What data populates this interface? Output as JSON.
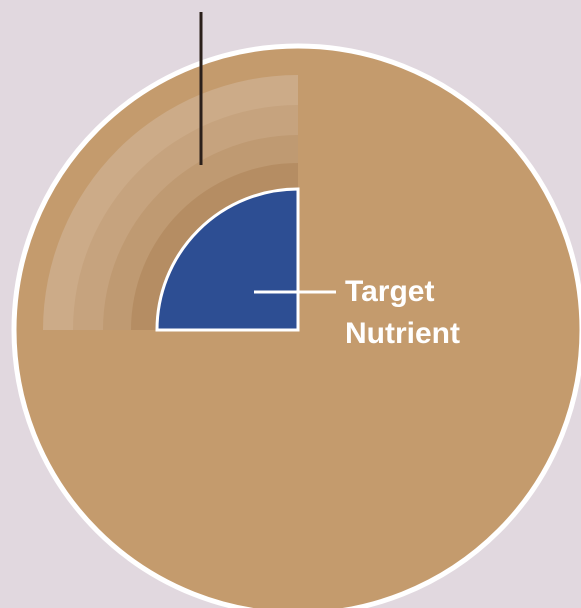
{
  "label_lines": [
    "Target",
    "Nutrient"
  ]
}
